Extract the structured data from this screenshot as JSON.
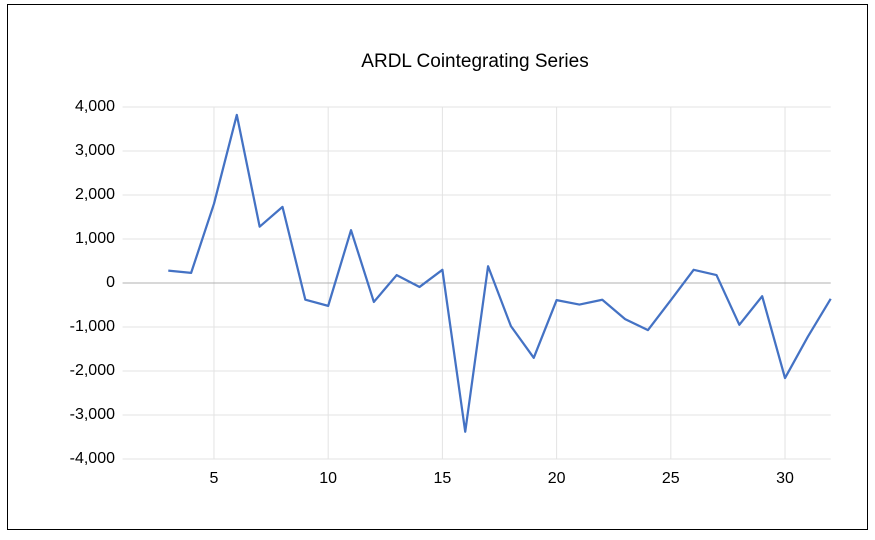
{
  "chart_data": {
    "type": "line",
    "title": "ARDL Cointegrating Series",
    "x": [
      3,
      4,
      5,
      6,
      7,
      8,
      9,
      10,
      11,
      12,
      13,
      14,
      15,
      16,
      17,
      18,
      19,
      20,
      21,
      22,
      23,
      24,
      25,
      26,
      27,
      28,
      29,
      30,
      31,
      32
    ],
    "series": [
      {
        "color": "#4472c4",
        "values": [
          280,
          230,
          1800,
          3820,
          1280,
          1730,
          -380,
          -520,
          1200,
          -430,
          180,
          -90,
          300,
          -3380,
          380,
          -980,
          -1700,
          -390,
          -490,
          -380,
          -820,
          -1070,
          -390,
          300,
          180,
          -950,
          -300,
          -2160,
          -1220,
          -360
        ]
      }
    ],
    "xlim": [
      1,
      32
    ],
    "xticks": [
      5,
      10,
      15,
      20,
      25,
      30
    ],
    "ylim": [
      -4000,
      4000
    ],
    "yticks": [
      {
        "value": -4000,
        "label": "-4,000"
      },
      {
        "value": -3000,
        "label": "-3,000"
      },
      {
        "value": -2000,
        "label": "-2,000"
      },
      {
        "value": -1000,
        "label": "-1,000"
      },
      0,
      {
        "value": 1000,
        "label": "1,000"
      },
      {
        "value": 2000,
        "label": "2,000"
      },
      {
        "value": 3000,
        "label": "3,000"
      },
      {
        "value": 4000,
        "label": "4,000"
      }
    ],
    "grid": true
  }
}
